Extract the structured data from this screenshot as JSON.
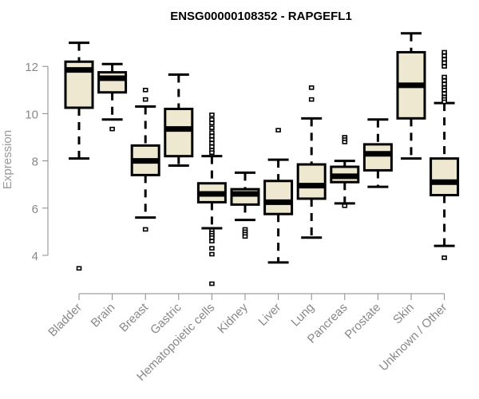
{
  "chart_data": {
    "type": "boxplot",
    "title": "ENSG00000108352 - RAPGEFL1",
    "xlabel": "",
    "ylabel": "Expression",
    "ylim": [
      2.6,
      13.6
    ],
    "yticks": [
      4,
      6,
      8,
      10,
      12
    ],
    "grid": false,
    "legend": "none",
    "box_fill": "#EEE8D0",
    "line_color": "#000000",
    "axis_color": "#888888",
    "categories": [
      "Bladder",
      "Brain",
      "Breast",
      "Gastric",
      "Hematopoietic cells",
      "Kidney",
      "Liver",
      "Lung",
      "Pancreas",
      "Prostate",
      "Skin",
      "Unknown / Other"
    ],
    "boxes": [
      {
        "name": "Bladder",
        "whisker_low": 8.1,
        "q1": 10.25,
        "median": 11.85,
        "q3": 12.2,
        "whisker_high": 13.0,
        "outliers": [
          3.45
        ]
      },
      {
        "name": "Brain",
        "whisker_low": 9.75,
        "q1": 10.9,
        "median": 11.5,
        "q3": 11.75,
        "whisker_high": 12.1,
        "outliers": [
          9.35
        ]
      },
      {
        "name": "Breast",
        "whisker_low": 5.6,
        "q1": 7.4,
        "median": 8.0,
        "q3": 8.65,
        "whisker_high": 10.3,
        "outliers": [
          11.0,
          10.6,
          5.1
        ]
      },
      {
        "name": "Gastric",
        "whisker_low": 7.8,
        "q1": 8.2,
        "median": 9.35,
        "q3": 10.2,
        "whisker_high": 11.65,
        "outliers": []
      },
      {
        "name": "Hematopoietic cells",
        "whisker_low": 5.15,
        "q1": 6.25,
        "median": 6.6,
        "q3": 7.05,
        "whisker_high": 8.2,
        "outliers": [
          9.95,
          9.75,
          9.6,
          9.4,
          9.2,
          9.05,
          8.9,
          8.75,
          8.6,
          8.45,
          8.35,
          5.05,
          4.95,
          4.85,
          4.75,
          4.6,
          4.3,
          4.05,
          2.8
        ]
      },
      {
        "name": "Kidney",
        "whisker_low": 5.5,
        "q1": 6.15,
        "median": 6.6,
        "q3": 6.8,
        "whisker_high": 7.5,
        "outliers": [
          5.1,
          5.0,
          4.9,
          4.8
        ]
      },
      {
        "name": "Liver",
        "whisker_low": 3.7,
        "q1": 5.75,
        "median": 6.25,
        "q3": 7.15,
        "whisker_high": 8.05,
        "outliers": [
          9.3
        ]
      },
      {
        "name": "Lung",
        "whisker_low": 4.75,
        "q1": 6.4,
        "median": 6.95,
        "q3": 7.85,
        "whisker_high": 9.8,
        "outliers": [
          11.1,
          10.6
        ]
      },
      {
        "name": "Pancreas",
        "whisker_low": 6.2,
        "q1": 7.1,
        "median": 7.35,
        "q3": 7.75,
        "whisker_high": 8.0,
        "outliers": [
          9.0,
          8.9,
          8.8,
          6.1
        ]
      },
      {
        "name": "Prostate",
        "whisker_low": 6.9,
        "q1": 7.6,
        "median": 8.3,
        "q3": 8.7,
        "whisker_high": 9.75,
        "outliers": []
      },
      {
        "name": "Skin",
        "whisker_low": 8.1,
        "q1": 9.8,
        "median": 11.2,
        "q3": 12.6,
        "whisker_high": 13.4,
        "outliers": []
      },
      {
        "name": "Unknown / Other",
        "whisker_low": 4.4,
        "q1": 6.55,
        "median": 7.1,
        "q3": 8.1,
        "whisker_high": 10.45,
        "outliers": [
          12.6,
          12.45,
          12.3,
          12.15,
          12.0,
          11.55,
          11.4,
          11.25,
          11.1,
          11.0,
          10.85,
          10.7,
          10.6,
          10.5,
          3.9
        ]
      }
    ]
  }
}
